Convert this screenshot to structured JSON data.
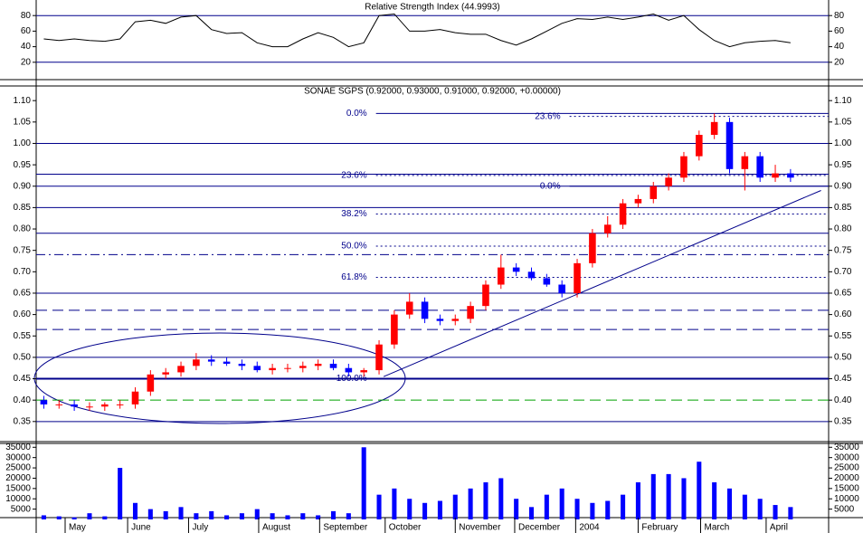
{
  "chart_data": [
    {
      "type": "line",
      "title": "Relative Strength Index (44.9993)",
      "color": "#000000",
      "xlim": [
        0,
        52
      ],
      "ylim": [
        0,
        100
      ],
      "yticks": [
        20,
        40,
        60,
        80
      ],
      "guides": [
        20,
        80
      ],
      "x": [
        0.5,
        1.5,
        2.5,
        3.5,
        4.5,
        5.5,
        6.5,
        7.5,
        8.5,
        9.5,
        10.5,
        11.5,
        12.5,
        13.5,
        14.5,
        15.5,
        16.5,
        17.5,
        18.5,
        19.5,
        20.5,
        21.5,
        22.5,
        23.5,
        24.5,
        25.5,
        26.5,
        27.5,
        28.5,
        29.5,
        30.5,
        31.5,
        32.5,
        33.5,
        34.5,
        35.5,
        36.5,
        37.5,
        38.5,
        39.5,
        40.5,
        41.5,
        42.5,
        43.5,
        44.5,
        45.5,
        46.5,
        47.5,
        48.5,
        49.5
      ],
      "values": [
        50,
        48,
        50,
        48,
        47,
        50,
        72,
        74,
        70,
        78,
        80,
        62,
        57,
        58,
        45,
        40,
        40,
        50,
        58,
        52,
        40,
        45,
        80,
        82,
        60,
        60,
        62,
        58,
        56,
        56,
        48,
        42,
        50,
        60,
        70,
        76,
        75,
        78,
        75,
        78,
        82,
        74,
        80,
        62,
        48,
        40,
        45,
        47,
        48,
        45
      ]
    },
    {
      "type": "candlestick",
      "title": "SONAE SGPS (0.92000, 0.93000, 0.91000, 0.92000, +0.00000)",
      "up_color": "#ff0000",
      "down_color": "#0000ff",
      "xlim": [
        0,
        52
      ],
      "ylim": [
        0.32,
        1.13
      ],
      "yticks": [
        {
          "value": 0.35,
          "label": "0.35"
        },
        {
          "value": 0.4,
          "label": "0.40"
        },
        {
          "value": 0.45,
          "label": "0.45"
        },
        {
          "value": 0.5,
          "label": "0.50"
        },
        {
          "value": 0.55,
          "label": "0.55"
        },
        {
          "value": 0.6,
          "label": "0.60"
        },
        {
          "value": 0.65,
          "label": "0.65"
        },
        {
          "value": 0.7,
          "label": "0.70"
        },
        {
          "value": 0.75,
          "label": "0.75"
        },
        {
          "value": 0.8,
          "label": "0.80"
        },
        {
          "value": 0.85,
          "label": "0.85"
        },
        {
          "value": 0.9,
          "label": "0.90"
        },
        {
          "value": 0.95,
          "label": "0.95"
        },
        {
          "value": 1.0,
          "label": "1.00"
        },
        {
          "value": 1.05,
          "label": "1.05"
        },
        {
          "value": 1.1,
          "label": "1.10"
        }
      ],
      "x": [
        0.5,
        1.5,
        2.5,
        3.5,
        4.5,
        5.5,
        6.5,
        7.5,
        8.5,
        9.5,
        10.5,
        11.5,
        12.5,
        13.5,
        14.5,
        15.5,
        16.5,
        17.5,
        18.5,
        19.5,
        20.5,
        21.5,
        22.5,
        23.5,
        24.5,
        25.5,
        26.5,
        27.5,
        28.5,
        29.5,
        30.5,
        31.5,
        32.5,
        33.5,
        34.5,
        35.5,
        36.5,
        37.5,
        38.5,
        39.5,
        40.5,
        41.5,
        42.5,
        43.5,
        44.5,
        45.5,
        46.5,
        47.5,
        48.5,
        49.5
      ],
      "open": [
        0.4,
        0.39,
        0.39,
        0.385,
        0.385,
        0.39,
        0.39,
        0.42,
        0.46,
        0.465,
        0.48,
        0.495,
        0.49,
        0.485,
        0.48,
        0.47,
        0.475,
        0.475,
        0.48,
        0.485,
        0.475,
        0.465,
        0.47,
        0.53,
        0.6,
        0.63,
        0.59,
        0.585,
        0.59,
        0.62,
        0.67,
        0.71,
        0.7,
        0.685,
        0.67,
        0.65,
        0.72,
        0.79,
        0.81,
        0.86,
        0.87,
        0.9,
        0.92,
        0.97,
        1.02,
        1.05,
        0.94,
        0.97,
        0.92,
        0.93
      ],
      "high": [
        0.41,
        0.4,
        0.4,
        0.395,
        0.395,
        0.4,
        0.43,
        0.47,
        0.475,
        0.49,
        0.51,
        0.505,
        0.5,
        0.495,
        0.49,
        0.485,
        0.485,
        0.49,
        0.495,
        0.495,
        0.485,
        0.475,
        0.54,
        0.61,
        0.65,
        0.64,
        0.6,
        0.6,
        0.63,
        0.68,
        0.74,
        0.72,
        0.71,
        0.695,
        0.68,
        0.73,
        0.8,
        0.83,
        0.87,
        0.88,
        0.91,
        0.93,
        0.98,
        1.03,
        1.07,
        1.06,
        0.98,
        0.98,
        0.95,
        0.94
      ],
      "low": [
        0.38,
        0.38,
        0.375,
        0.375,
        0.375,
        0.38,
        0.38,
        0.41,
        0.45,
        0.455,
        0.47,
        0.48,
        0.48,
        0.47,
        0.465,
        0.46,
        0.465,
        0.465,
        0.47,
        0.47,
        0.455,
        0.455,
        0.46,
        0.52,
        0.59,
        0.58,
        0.575,
        0.575,
        0.58,
        0.61,
        0.66,
        0.69,
        0.68,
        0.665,
        0.64,
        0.64,
        0.71,
        0.78,
        0.8,
        0.85,
        0.86,
        0.89,
        0.91,
        0.96,
        1.01,
        0.93,
        0.89,
        0.91,
        0.91,
        0.91
      ],
      "close": [
        0.39,
        0.39,
        0.385,
        0.385,
        0.39,
        0.39,
        0.42,
        0.46,
        0.465,
        0.48,
        0.495,
        0.49,
        0.485,
        0.48,
        0.47,
        0.475,
        0.475,
        0.48,
        0.485,
        0.475,
        0.465,
        0.47,
        0.53,
        0.6,
        0.63,
        0.59,
        0.585,
        0.59,
        0.62,
        0.67,
        0.71,
        0.7,
        0.685,
        0.67,
        0.65,
        0.72,
        0.79,
        0.81,
        0.86,
        0.87,
        0.9,
        0.92,
        0.97,
        1.02,
        1.05,
        0.94,
        0.97,
        0.92,
        0.93,
        0.92
      ],
      "levels": [
        {
          "value": 1.0,
          "style": "solid",
          "color": "#00008b"
        },
        {
          "value": 0.928,
          "style": "solid",
          "color": "#00008b"
        },
        {
          "value": 0.9,
          "style": "solid",
          "color": "#00008b"
        },
        {
          "value": 0.85,
          "style": "solid",
          "color": "#00008b"
        },
        {
          "value": 0.79,
          "style": "solid",
          "color": "#00008b"
        },
        {
          "value": 0.74,
          "style": "dashdot",
          "color": "#00008b"
        },
        {
          "value": 0.65,
          "style": "solid",
          "color": "#00008b"
        },
        {
          "value": 0.61,
          "style": "dashed",
          "color": "#00008b"
        },
        {
          "value": 0.565,
          "style": "dashed",
          "color": "#00008b"
        },
        {
          "value": 0.5,
          "style": "solid",
          "color": "#00008b"
        },
        {
          "value": 0.45,
          "style": "thick",
          "color": "#00008b"
        },
        {
          "value": 0.4,
          "style": "dashed",
          "color": "#00a000"
        },
        {
          "value": 0.35,
          "style": "solid",
          "color": "#00008b"
        }
      ],
      "fib_labels": [
        {
          "label": "0.0%",
          "value": 1.07,
          "x": 22.3,
          "style": "solid"
        },
        {
          "label": "23.6%",
          "value": 0.925,
          "x": 22.3,
          "style": "dotted"
        },
        {
          "label": "38.2%",
          "value": 0.835,
          "x": 22.3,
          "style": "dotted"
        },
        {
          "label": "50.0%",
          "value": 0.76,
          "x": 22.3,
          "style": "dotted"
        },
        {
          "label": "61.8%",
          "value": 0.687,
          "x": 22.3,
          "style": "dotted"
        },
        {
          "label": "100.0%",
          "value": 0.45,
          "x": 22.3,
          "style": "solid"
        },
        {
          "label": "23.6%",
          "value": 1.063,
          "x": 35,
          "style": "dotted"
        },
        {
          "label": "0.0%",
          "value": 0.9,
          "x": 35,
          "style": "solid"
        }
      ],
      "trendline": {
        "x": [
          22.8,
          51.5
        ],
        "y": [
          0.455,
          0.89
        ],
        "color": "#00008b"
      }
    },
    {
      "type": "bar",
      "color": "#0000ff",
      "xlim": [
        0,
        52
      ],
      "ylim": [
        0,
        36000
      ],
      "yticks": [
        5000,
        10000,
        15000,
        20000,
        25000,
        30000,
        35000
      ],
      "xticks": [
        {
          "value": 1.9,
          "label": "May"
        },
        {
          "value": 6.0,
          "label": "June"
        },
        {
          "value": 10.0,
          "label": "July"
        },
        {
          "value": 14.6,
          "label": "August"
        },
        {
          "value": 18.6,
          "label": "September"
        },
        {
          "value": 22.9,
          "label": "October"
        },
        {
          "value": 27.5,
          "label": "November"
        },
        {
          "value": 31.4,
          "label": "December"
        },
        {
          "value": 35.4,
          "label": "2004"
        },
        {
          "value": 39.5,
          "label": "February"
        },
        {
          "value": 43.6,
          "label": "March"
        },
        {
          "value": 47.9,
          "label": "April"
        }
      ],
      "x": [
        0.5,
        1.5,
        2.5,
        3.5,
        4.5,
        5.5,
        6.5,
        7.5,
        8.5,
        9.5,
        10.5,
        11.5,
        12.5,
        13.5,
        14.5,
        15.5,
        16.5,
        17.5,
        18.5,
        19.5,
        20.5,
        21.5,
        22.5,
        23.5,
        24.5,
        25.5,
        26.5,
        27.5,
        28.5,
        29.5,
        30.5,
        31.5,
        32.5,
        33.5,
        34.5,
        35.5,
        36.5,
        37.5,
        38.5,
        39.5,
        40.5,
        41.5,
        42.5,
        43.5,
        44.5,
        45.5,
        46.5,
        47.5,
        48.5,
        49.5
      ],
      "values": [
        2000,
        1500,
        1000,
        3000,
        1500,
        25000,
        8000,
        5000,
        4000,
        6000,
        3000,
        4000,
        2000,
        3000,
        5000,
        3000,
        2000,
        3000,
        2000,
        4000,
        3000,
        35000,
        12000,
        15000,
        10000,
        8000,
        9000,
        12000,
        15000,
        18000,
        20000,
        10000,
        6000,
        12000,
        15000,
        10000,
        8000,
        9000,
        12000,
        18000,
        22000,
        22000,
        20000,
        28000,
        18000,
        15000,
        12000,
        10000,
        7000,
        6000
      ]
    }
  ]
}
